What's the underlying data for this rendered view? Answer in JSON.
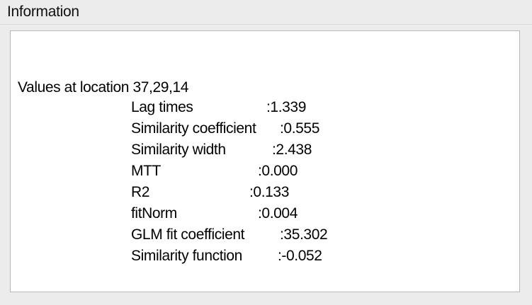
{
  "panel": {
    "title": "Information"
  },
  "info": {
    "location_text": "Values at location 37,29,14",
    "rows": [
      {
        "label": "Lag times",
        "value": ":1.339"
      },
      {
        "label": "Similarity coefficient",
        "value": ":0.555"
      },
      {
        "label": "Similarity width",
        "value": ":2.438"
      },
      {
        "label": "MTT",
        "value": ":0.000"
      },
      {
        "label": "R2",
        "value": ":0.133"
      },
      {
        "label": "fitNorm",
        "value": ":0.004"
      },
      {
        "label": "GLM fit coefficient",
        "value": ":35.302"
      },
      {
        "label": "Similarity function",
        "value": ":-0.052"
      }
    ]
  }
}
